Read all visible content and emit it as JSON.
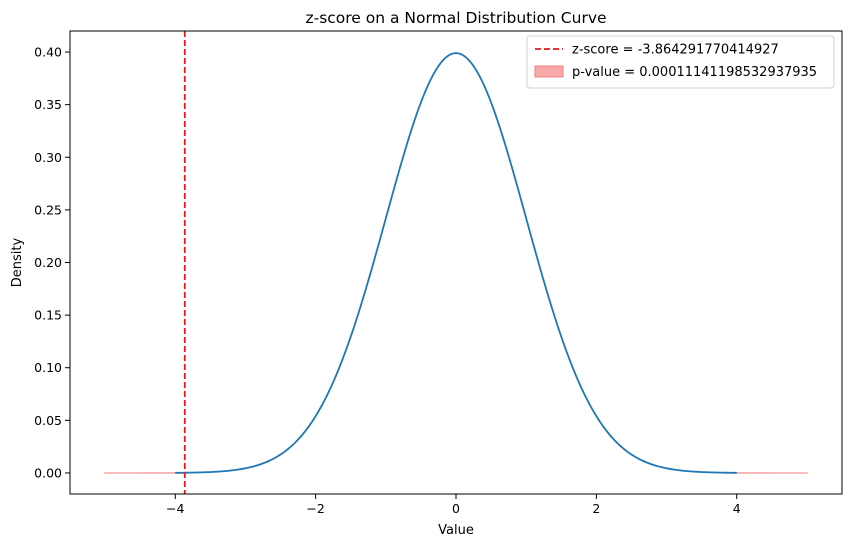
{
  "chart_data": {
    "type": "line",
    "title": "z-score on a Normal Distribution Curve",
    "xlabel": "Value",
    "ylabel": "Density",
    "xlim": [
      -5.5,
      5.5
    ],
    "ylim": [
      -0.02,
      0.42
    ],
    "x_ticks": [
      -4,
      -2,
      0,
      2,
      4
    ],
    "x_tick_labels": [
      "−4",
      "−2",
      "0",
      "2",
      "4"
    ],
    "y_ticks": [
      0.0,
      0.05,
      0.1,
      0.15,
      0.2,
      0.25,
      0.3,
      0.35,
      0.4
    ],
    "y_tick_labels": [
      "0.00",
      "0.05",
      "0.10",
      "0.15",
      "0.20",
      "0.25",
      "0.30",
      "0.35",
      "0.40"
    ],
    "grid": false,
    "legend_position": "top-right",
    "series": [
      {
        "kind": "curve",
        "function": "standard normal pdf",
        "x_range": [
          -4,
          4
        ],
        "color": "#1f77b4"
      },
      {
        "kind": "vline",
        "name": "z-score = -3.864291770414927",
        "x": -3.864291770414927,
        "color": "#e41a1c",
        "linestyle": "dashed"
      },
      {
        "kind": "fill",
        "name": "p-value = 0.00011141198532937935",
        "x_ranges": [
          [
            -5,
            -3.864291770414927
          ],
          [
            3.864291770414927,
            5
          ]
        ],
        "color": "#f8a8a8"
      }
    ]
  }
}
